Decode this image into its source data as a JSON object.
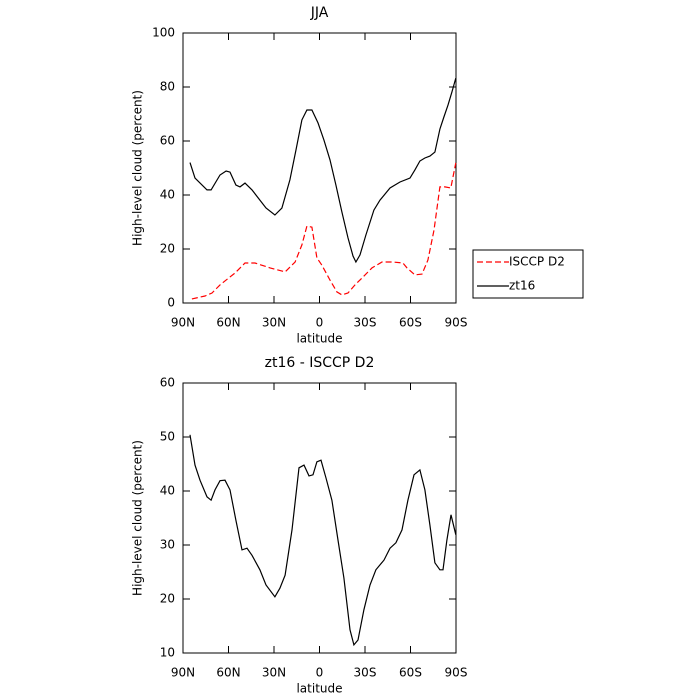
{
  "chart_data": [
    {
      "type": "line",
      "title": "JJA",
      "xlabel": "latitude",
      "ylabel": "High-level cloud (percent)",
      "xlim": [
        90,
        -90
      ],
      "xticks": [
        {
          "value": 90,
          "label": "90N"
        },
        {
          "value": 60,
          "label": "60N"
        },
        {
          "value": 30,
          "label": "30N"
        },
        0,
        {
          "value": -30,
          "label": "30S"
        },
        {
          "value": -60,
          "label": "60S"
        },
        {
          "value": -90,
          "label": "90S"
        }
      ],
      "ylim": [
        0,
        100
      ],
      "yticks": [
        0,
        20,
        40,
        60,
        80,
        100
      ],
      "legend": "right",
      "series": [
        {
          "name": "ISCCP D2",
          "color": "#ff0000",
          "dash": true,
          "x": [
            84.1,
            75.5,
            70.9,
            65.6,
            55.7,
            49.1,
            42.5,
            32.6,
            22.7,
            16.1,
            11.6,
            8.3,
            5.0,
            1.7,
            -1.6,
            -6.9,
            -11.5,
            -14.8,
            -18.8,
            -23.4,
            -28.6,
            -34.6,
            -41.2,
            -48.4,
            -55.0,
            -57.7,
            -62.9,
            -67.6,
            -71.5,
            -75.5,
            -79.4,
            -82.7,
            -86.6,
            -89.9
          ],
          "values": [
            1.5,
            2.6,
            3.7,
            6.7,
            11.1,
            14.8,
            14.8,
            13,
            11.5,
            15.2,
            21.5,
            28.5,
            28.1,
            16.7,
            14,
            8.5,
            4.1,
            3,
            3.7,
            6.7,
            9.6,
            13,
            15.2,
            15.2,
            14.8,
            13,
            10.4,
            10.7,
            15.9,
            27,
            43,
            43,
            42.6,
            51.9
          ]
        },
        {
          "name": "zt16",
          "color": "#000000",
          "dash": false,
          "x": [
            85.4,
            82.1,
            74.2,
            71.5,
            65.6,
            61.6,
            59.0,
            55.1,
            52.4,
            49.1,
            44.5,
            39.3,
            35.3,
            29.4,
            24.8,
            19.5,
            15.5,
            11.6,
            8.3,
            5.0,
            1.0,
            -2.9,
            -6.9,
            -10.8,
            -14.8,
            -18.8,
            -22.1,
            -24.0,
            -26.7,
            -30.6,
            -35.9,
            -39.9,
            -46.5,
            -53.1,
            -59.7,
            -62.9,
            -66.2,
            -69.5,
            -72.8,
            -76.1,
            -79.4,
            -82.0,
            -84.7,
            -87.3,
            -89.9
          ],
          "values": [
            52,
            46.3,
            41.9,
            41.9,
            47.4,
            48.9,
            48.5,
            43.7,
            43.0,
            44.4,
            41.9,
            38.1,
            35.2,
            32.6,
            35.2,
            45.6,
            56.7,
            67.8,
            71.5,
            71.5,
            66.7,
            60.4,
            53.0,
            43.7,
            33.7,
            24.1,
            17.4,
            15.2,
            17.8,
            25.2,
            34.4,
            38.1,
            42.6,
            44.8,
            46.3,
            49.3,
            52.6,
            53.7,
            54.4,
            55.9,
            64.4,
            68.9,
            73.3,
            78.1,
            83.3
          ]
        }
      ]
    },
    {
      "type": "line",
      "title": "zt16 - ISCCP D2",
      "xlabel": "latitude",
      "ylabel": "High-level cloud (percent)",
      "xlim": [
        90,
        -90
      ],
      "xticks": [
        {
          "value": 90,
          "label": "90N"
        },
        {
          "value": 60,
          "label": "60N"
        },
        {
          "value": 30,
          "label": "30N"
        },
        0,
        {
          "value": -30,
          "label": "30S"
        },
        {
          "value": -60,
          "label": "60S"
        },
        {
          "value": -90,
          "label": "90S"
        }
      ],
      "ylim": [
        10,
        60
      ],
      "yticks": [
        10,
        20,
        30,
        40,
        50,
        60
      ],
      "color": "#000000",
      "x": [
        85.4,
        82.1,
        78.8,
        74.2,
        71.5,
        68.9,
        65.6,
        62.3,
        59.0,
        55.1,
        51.1,
        47.8,
        44.5,
        39.3,
        35.3,
        29.4,
        26.1,
        22.7,
        18.1,
        13.5,
        10.2,
        6.9,
        4.3,
        1.7,
        -1.0,
        -4.3,
        -8.2,
        -12.2,
        -16.1,
        -20.1,
        -22.7,
        -25.4,
        -29.3,
        -33.3,
        -37.2,
        -42.5,
        -46.5,
        -50.4,
        -54.4,
        -58.3,
        -62.3,
        -66.2,
        -69.5,
        -72.8,
        -76.1,
        -79.4,
        -81.4,
        -84.0,
        -86.7,
        -89.9
      ],
      "values": [
        50.4,
        44.8,
        42.0,
        38.9,
        38.3,
        40.2,
        41.9,
        42.0,
        40.2,
        34.6,
        29.1,
        29.4,
        28.1,
        25.4,
        22.6,
        20.4,
        22,
        24.4,
        32.8,
        44.3,
        44.8,
        42.8,
        43,
        45.4,
        45.7,
        42.4,
        38.3,
        30.9,
        23.9,
        14.3,
        11.5,
        12.4,
        18,
        22.6,
        25.4,
        27.2,
        29.4,
        30.4,
        32.8,
        38.3,
        43,
        43.9,
        40.2,
        33.7,
        26.7,
        25.4,
        25.4,
        30.9,
        35.6,
        31.9
      ]
    }
  ]
}
